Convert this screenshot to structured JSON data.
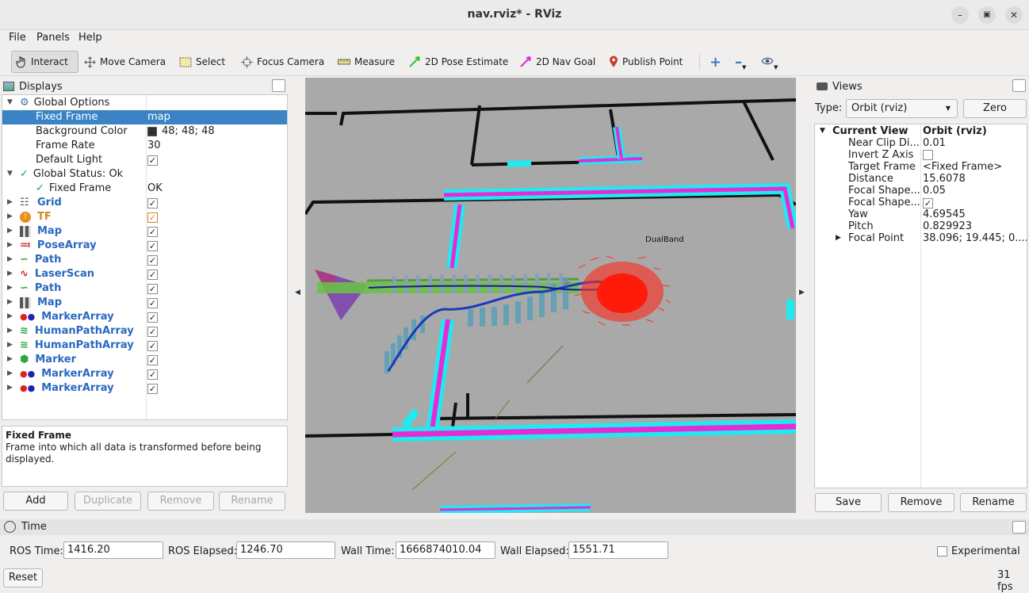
{
  "window": {
    "title": "nav.rviz* - RViz"
  },
  "menu": [
    "File",
    "Panels",
    "Help"
  ],
  "toolbar": {
    "tools": [
      "Interact",
      "Move Camera",
      "Select",
      "Focus Camera",
      "Measure",
      "2D Pose Estimate",
      "2D Nav Goal",
      "Publish Point"
    ]
  },
  "displays": {
    "title": "Displays",
    "rows": [
      {
        "name": "Global Options",
        "value": ""
      },
      {
        "name": "Fixed Frame",
        "value": "map"
      },
      {
        "name": "Background Color",
        "value": "48; 48; 48"
      },
      {
        "name": "Frame Rate",
        "value": "30"
      },
      {
        "name": "Default Light",
        "value": ""
      },
      {
        "name": "Global Status: Ok",
        "value": ""
      },
      {
        "name": "Fixed Frame",
        "value": "OK"
      },
      {
        "name": "Grid",
        "value": ""
      },
      {
        "name": "TF",
        "value": ""
      },
      {
        "name": "Map",
        "value": ""
      },
      {
        "name": "PoseArray",
        "value": ""
      },
      {
        "name": "Path",
        "value": ""
      },
      {
        "name": "LaserScan",
        "value": ""
      },
      {
        "name": "Path",
        "value": ""
      },
      {
        "name": "Map",
        "value": ""
      },
      {
        "name": "MarkerArray",
        "value": ""
      },
      {
        "name": "HumanPathArray",
        "value": ""
      },
      {
        "name": "HumanPathArray",
        "value": ""
      },
      {
        "name": "Marker",
        "value": ""
      },
      {
        "name": "MarkerArray",
        "value": ""
      },
      {
        "name": "MarkerArray",
        "value": ""
      }
    ],
    "description": {
      "title": "Fixed Frame",
      "text": "Frame into which all data is transformed before being displayed."
    },
    "buttons": {
      "add": "Add",
      "duplicate": "Duplicate",
      "remove": "Remove",
      "rename": "Rename"
    }
  },
  "viewport": {
    "label": "DualBand"
  },
  "views": {
    "title": "Views",
    "type_label": "Type:",
    "type_value": "Orbit (rviz)",
    "zero": "Zero",
    "rows": [
      {
        "k": "Current View",
        "v": "Orbit (rviz)"
      },
      {
        "k": "Near Clip Di...",
        "v": "0.01"
      },
      {
        "k": "Invert Z Axis",
        "v": ""
      },
      {
        "k": "Target Frame",
        "v": "<Fixed Frame>"
      },
      {
        "k": "Distance",
        "v": "15.6078"
      },
      {
        "k": "Focal Shape...",
        "v": "0.05"
      },
      {
        "k": "Focal Shape...",
        "v": ""
      },
      {
        "k": "Yaw",
        "v": "4.69545"
      },
      {
        "k": "Pitch",
        "v": "0.829923"
      },
      {
        "k": "Focal Point",
        "v": "38.096; 19.445; 0...."
      }
    ],
    "buttons": {
      "save": "Save",
      "remove": "Remove",
      "rename": "Rename"
    }
  },
  "time": {
    "title": "Time",
    "ros_time_label": "ROS Time:",
    "ros_time": "1416.20",
    "ros_elapsed_label": "ROS Elapsed:",
    "ros_elapsed": "1246.70",
    "wall_time_label": "Wall Time:",
    "wall_time": "1666874010.04",
    "wall_elapsed_label": "Wall Elapsed:",
    "wall_elapsed": "1551.71",
    "experimental": "Experimental",
    "reset": "Reset",
    "fps": "31 fps"
  },
  "colors": {
    "selection": "#3a84c6",
    "display_name": "#2a68c0",
    "map_bg": "#a8a8a8",
    "obstacle_magenta": "#e62ad6",
    "inflation_cyan": "#22e8f0"
  }
}
